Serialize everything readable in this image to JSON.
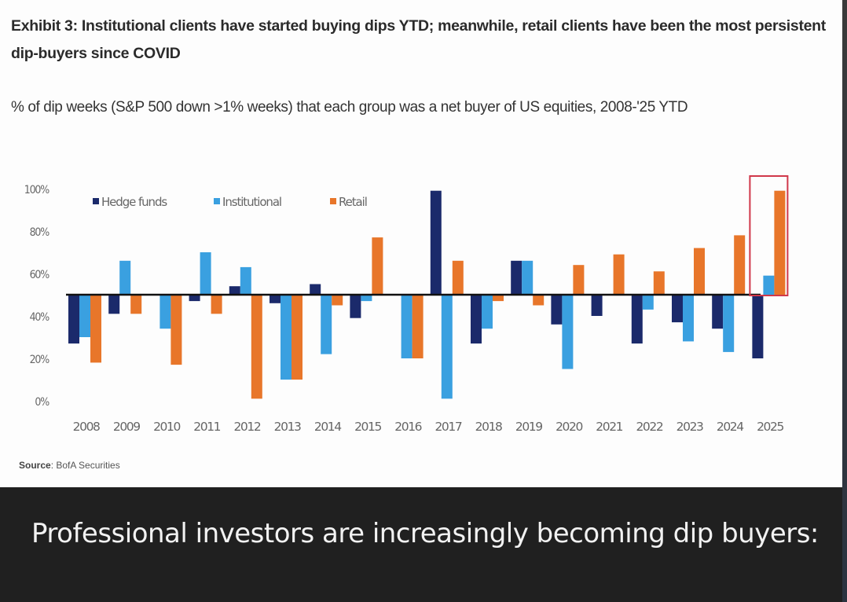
{
  "header": {
    "title": "Exhibit 3: Institutional clients have started buying dips YTD; meanwhile, retail clients have been the most persistent dip-buyers since COVID",
    "subtitle": "% of dip weeks (S&P 500 down >1% weeks) that each group was a net buyer of US equities, 2008-'25 YTD"
  },
  "source": {
    "label": "Source",
    "text": ": BofA Securities"
  },
  "caption": "Professional investors are increasingly becoming dip buyers:",
  "colors": {
    "hedge_funds": "#1b2a6b",
    "institutional": "#3aa0e0",
    "retail": "#e8762a",
    "highlight_box": "#d0384a",
    "axis_line": "#111111"
  },
  "chart_data": {
    "type": "bar",
    "title": "% of dip weeks (S&P 500 down >1% weeks) that each group was a net buyer of US equities, 2008-'25 YTD",
    "xlabel": "",
    "ylabel": "",
    "ylim": [
      0,
      100
    ],
    "baseline": 50,
    "yticks": [
      "0%",
      "20%",
      "40%",
      "60%",
      "80%",
      "100%"
    ],
    "ytick_values": [
      0,
      20,
      40,
      60,
      80,
      100
    ],
    "grid": false,
    "legend_position": "top-left",
    "categories": [
      "2008",
      "2009",
      "2010",
      "2011",
      "2012",
      "2013",
      "2014",
      "2015",
      "2016",
      "2017",
      "2018",
      "2019",
      "2020",
      "2021",
      "2022",
      "2023",
      "2024",
      "2025"
    ],
    "series": [
      {
        "name": "Hedge funds",
        "key": "hedge_funds",
        "values": [
          27,
          41,
          50,
          47,
          54,
          46,
          55,
          39,
          50,
          99,
          27,
          66,
          36,
          40,
          27,
          37,
          34,
          20
        ]
      },
      {
        "name": "Institutional",
        "key": "institutional",
        "values": [
          30,
          66,
          34,
          70,
          63,
          10,
          22,
          47,
          20,
          1,
          34,
          66,
          15,
          50,
          43,
          28,
          23,
          59
        ]
      },
      {
        "name": "Retail",
        "key": "retail",
        "values": [
          18,
          41,
          17,
          41,
          1,
          10,
          45,
          77,
          20,
          66,
          47,
          45,
          64,
          69,
          61,
          72,
          78,
          99
        ]
      }
    ],
    "annotations": [
      {
        "type": "highlight-box",
        "category": "2025"
      }
    ]
  }
}
